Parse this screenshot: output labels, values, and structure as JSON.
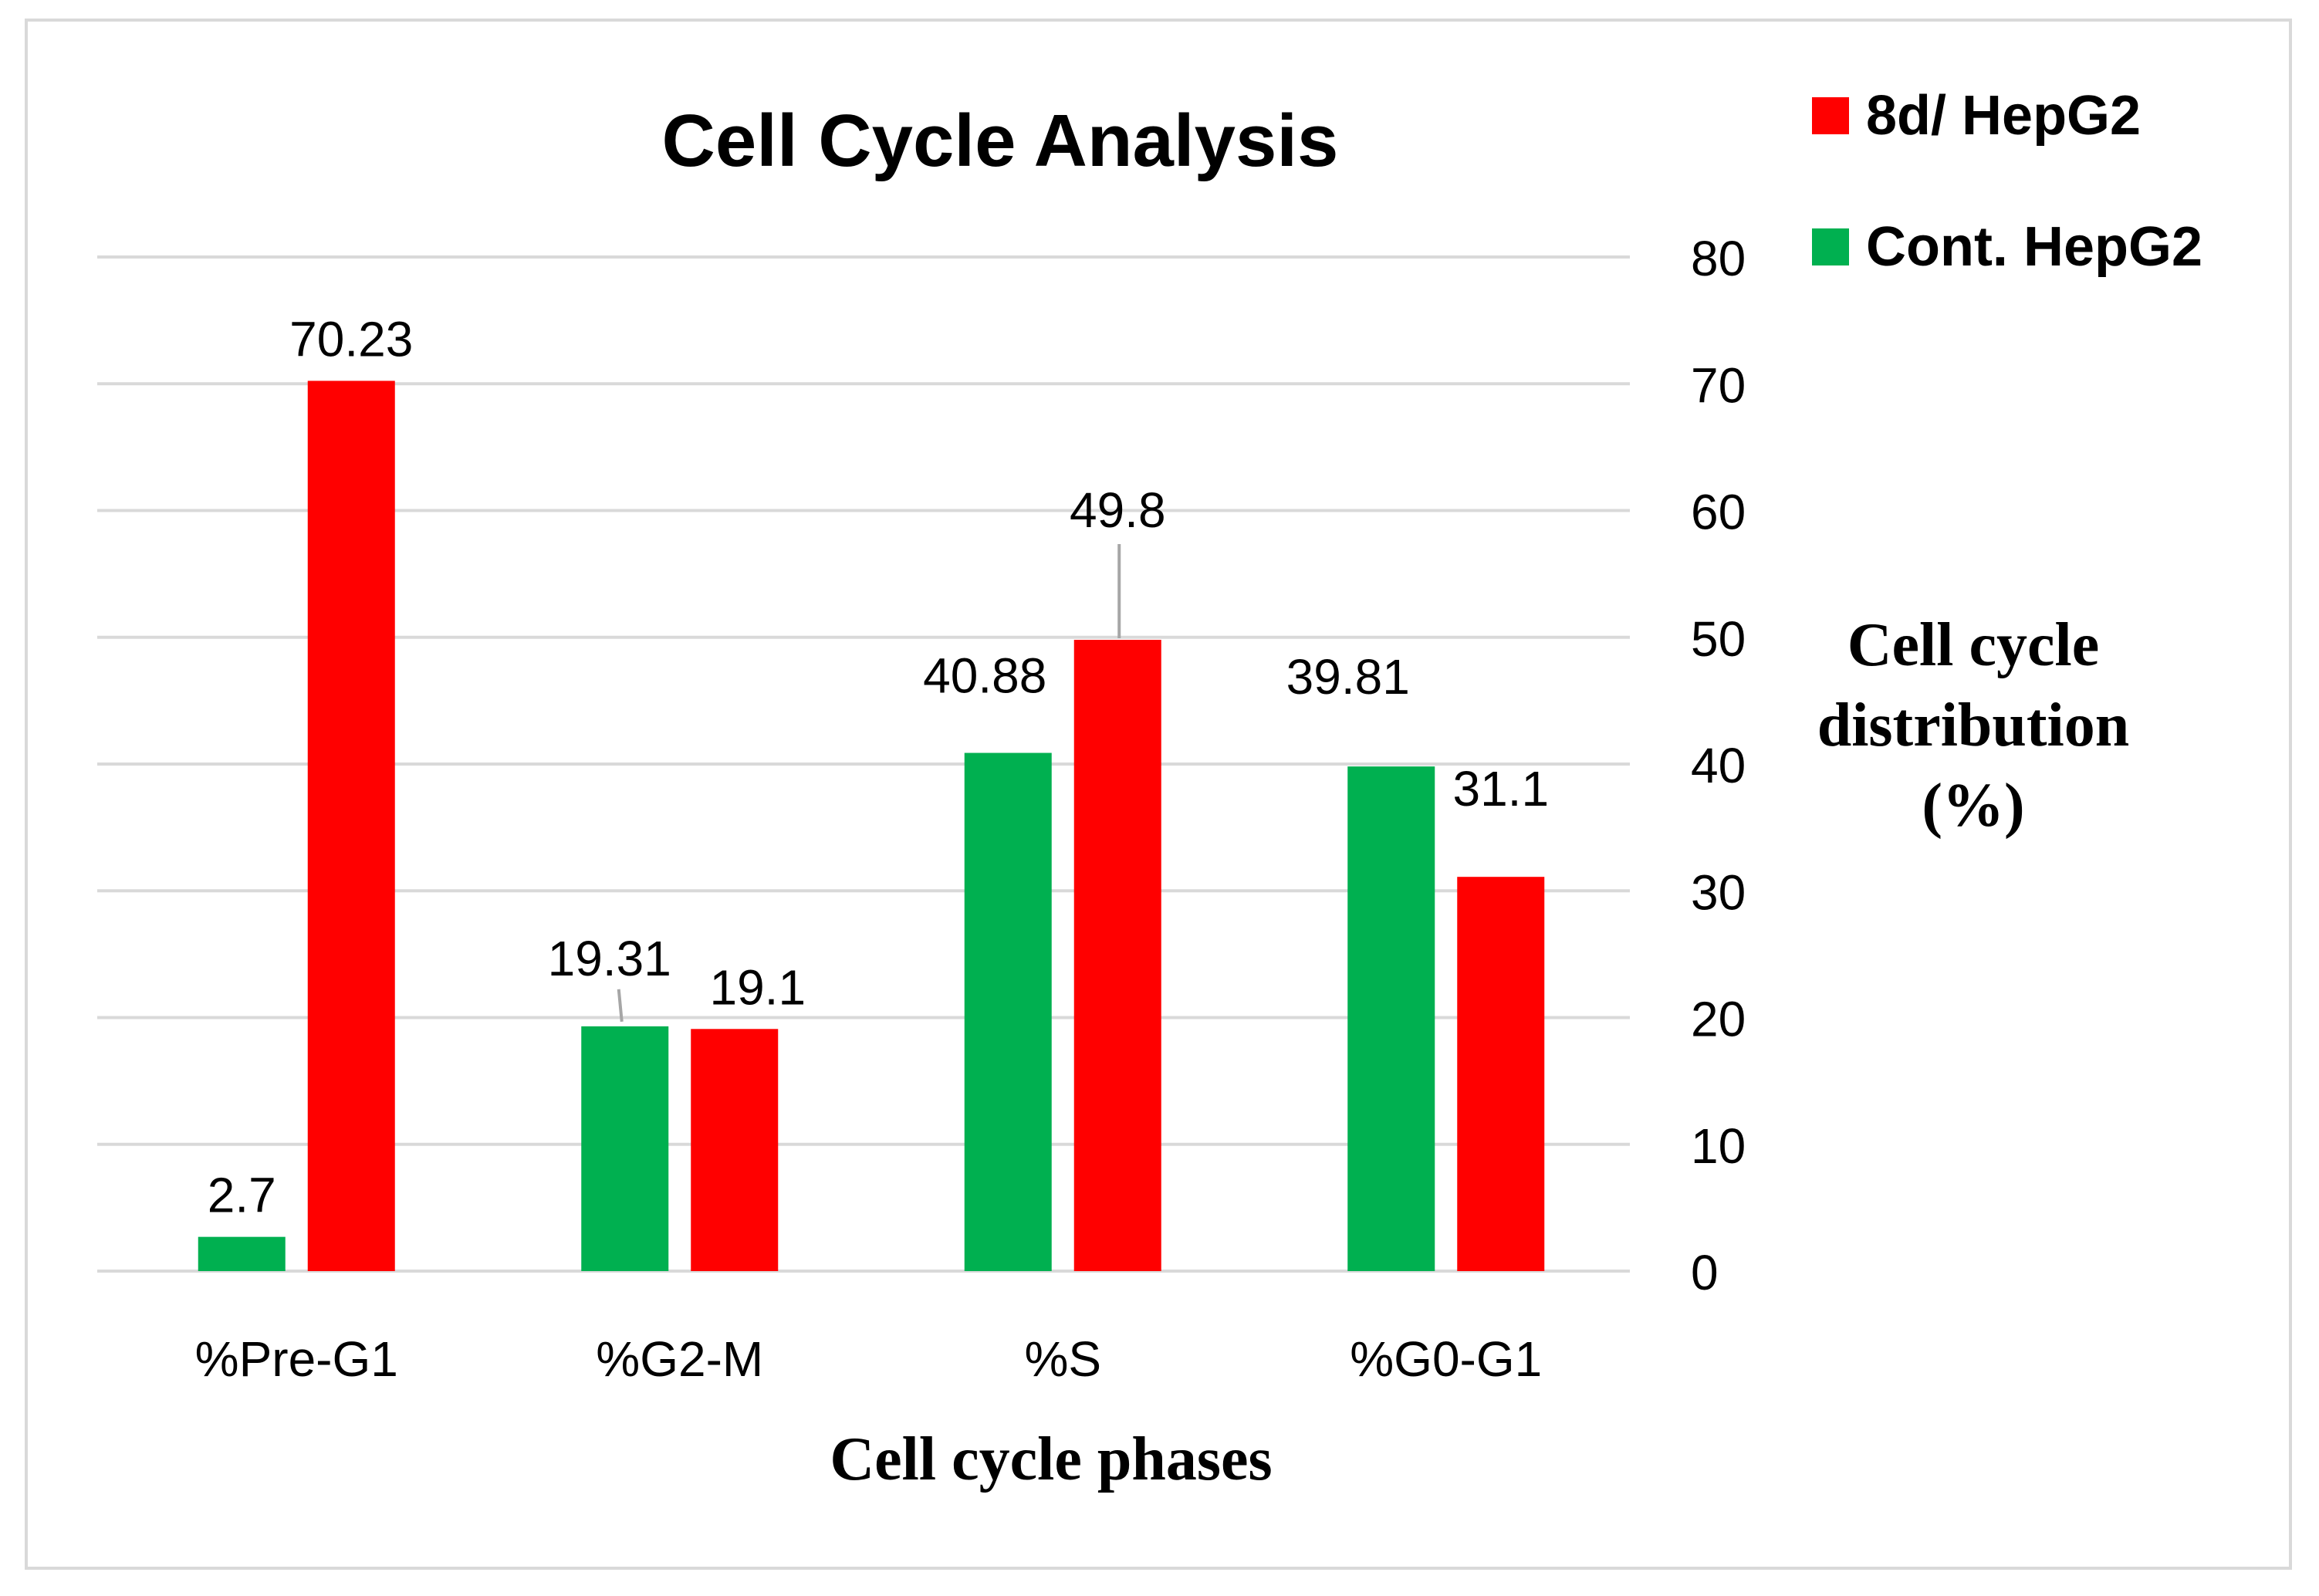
{
  "chart_data": {
    "type": "bar",
    "title": "Cell Cycle Analysis",
    "xlabel": "Cell cycle phases",
    "ylabel_lines": [
      "Cell cycle",
      "distribution",
      "(%)"
    ],
    "categories": [
      "%Pre-G1",
      "%G2-M",
      "%S",
      "%G0-G1"
    ],
    "series": [
      {
        "name": "Cont. HepG2",
        "values": [
          2.7,
          19.31,
          40.88,
          39.81
        ],
        "labels": [
          "2.7",
          "19.31",
          "40.88",
          "39.81"
        ],
        "color": "#00b050"
      },
      {
        "name": "8d/ HepG2",
        "values": [
          70.23,
          19.1,
          49.8,
          31.1
        ],
        "labels": [
          "70.23",
          "19.1",
          "49.8",
          "31.1"
        ],
        "color": "#ff0000"
      }
    ],
    "ylim": [
      0,
      80
    ],
    "yticks": [
      "0",
      "10",
      "20",
      "30",
      "40",
      "50",
      "60",
      "70",
      "80"
    ],
    "y_axis_side": "right",
    "grid": true,
    "grid_color": "#d9d9d9",
    "legend": {
      "position": "top-right",
      "items": [
        {
          "name": "8d/ HepG2",
          "color": "#ff0000"
        },
        {
          "name": "Cont. HepG2",
          "color": "#00b050"
        }
      ]
    }
  }
}
